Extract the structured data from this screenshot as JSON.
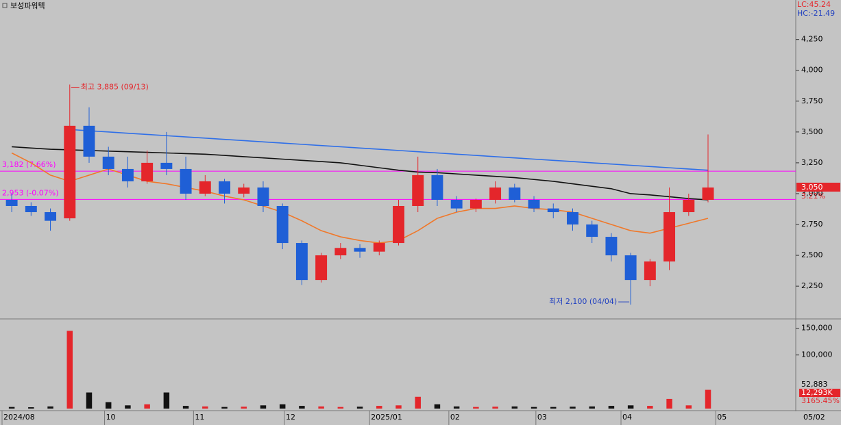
{
  "chart_data": [
    {
      "type": "candlestick",
      "title": "보성파워텍",
      "open": [
        2950,
        2900,
        2850,
        2800,
        3550,
        3300,
        3200,
        3100,
        3250,
        3200,
        3000,
        3100,
        3000,
        3050,
        2900,
        2600,
        2300,
        2500,
        2560,
        2530,
        2600,
        2900,
        3150,
        2950,
        2880,
        2950,
        3050,
        2950,
        2880,
        2850,
        2750,
        2650,
        2500,
        2300,
        2450,
        2850,
        2950
      ],
      "high": [
        3000,
        2930,
        2880,
        3885,
        3700,
        3380,
        3300,
        3350,
        3500,
        3300,
        3150,
        3120,
        3080,
        3100,
        2920,
        2620,
        2520,
        2600,
        2590,
        2620,
        2950,
        3300,
        3200,
        2980,
        2960,
        3100,
        3080,
        2980,
        2920,
        2880,
        2780,
        2680,
        2520,
        2470,
        3050,
        3000,
        3480
      ],
      "low": [
        2850,
        2820,
        2700,
        2780,
        3250,
        3150,
        3050,
        3080,
        3150,
        2950,
        2980,
        2920,
        2970,
        2850,
        2550,
        2260,
        2280,
        2470,
        2480,
        2500,
        2580,
        2850,
        2900,
        2850,
        2850,
        2920,
        2930,
        2850,
        2800,
        2700,
        2600,
        2450,
        2100,
        2250,
        2380,
        2820,
        2930
      ],
      "close": [
        2900,
        2850,
        2780,
        3550,
        3300,
        3200,
        3100,
        3250,
        3200,
        3000,
        3100,
        3000,
        3050,
        2900,
        2600,
        2300,
        2500,
        2560,
        2530,
        2600,
        2900,
        3150,
        2950,
        2880,
        2950,
        3050,
        2950,
        2880,
        2850,
        2750,
        2650,
        2500,
        2300,
        2450,
        2850,
        2950,
        3050
      ],
      "up_color": "#e4262b",
      "down_color": "#1f5fd6",
      "lines": [
        {
          "color": "#2f6fe8",
          "values": [
            null,
            null,
            null,
            3520,
            3510,
            3500,
            3490,
            3480,
            3470,
            3460,
            3450,
            3440,
            3430,
            3420,
            3410,
            3400,
            3390,
            3380,
            3370,
            3360,
            3350,
            3340,
            3330,
            3320,
            3310,
            3300,
            3290,
            3280,
            3270,
            3260,
            3250,
            3240,
            3230,
            3220,
            3210,
            3200,
            3190
          ]
        },
        {
          "color": "#111111",
          "values": [
            3380,
            3370,
            3360,
            3355,
            3350,
            3345,
            3340,
            3335,
            3330,
            3325,
            3320,
            3310,
            3300,
            3290,
            3280,
            3270,
            3260,
            3250,
            3230,
            3210,
            3190,
            3175,
            3170,
            3160,
            3150,
            3140,
            3130,
            3115,
            3100,
            3080,
            3060,
            3040,
            3000,
            2990,
            2975,
            2960,
            2950
          ]
        },
        {
          "color": "#f0782a",
          "values": [
            3330,
            3250,
            3150,
            3100,
            3150,
            3200,
            3150,
            3100,
            3080,
            3050,
            3020,
            2980,
            2950,
            2900,
            2850,
            2780,
            2700,
            2650,
            2620,
            2600,
            2620,
            2700,
            2800,
            2850,
            2880,
            2880,
            2900,
            2880,
            2870,
            2850,
            2800,
            2750,
            2700,
            2680,
            2720,
            2760,
            2800
          ]
        }
      ],
      "ref_color": "#ff00ff",
      "ref_lines": [
        {
          "value": 3182,
          "label": "3,182 (7.66%)"
        },
        {
          "value": 2953,
          "label": "2,953 (-0.07%)"
        }
      ],
      "high_note": "최고 3,885 (09/13)",
      "low_note": "최저 2,100 (04/04)",
      "lc_label": "LC:45.24",
      "hc_label": "HC:-21.49",
      "last_label": "3,050",
      "change_label": "3.21%",
      "xlim": [
        0,
        41
      ],
      "ylim": [
        1990,
        4570
      ],
      "yticks": [
        {
          "value": 2250,
          "label": "2,250"
        },
        {
          "value": 2500,
          "label": "2,500"
        },
        {
          "value": 2750,
          "label": "2,750"
        },
        {
          "value": 3000,
          "label": "3,000"
        },
        {
          "value": 3250,
          "label": "3,250"
        },
        {
          "value": 3500,
          "label": "3,500"
        },
        {
          "value": 3750,
          "label": "3,750"
        },
        {
          "value": 4000,
          "label": "4,000"
        },
        {
          "value": 4250,
          "label": "4,250"
        }
      ]
    },
    {
      "type": "bar",
      "values": [
        3000,
        2500,
        4000,
        145000,
        30000,
        12000,
        6000,
        8000,
        30000,
        5000,
        4000,
        3000,
        3500,
        6000,
        8000,
        5000,
        4000,
        3000,
        3500,
        5000,
        6000,
        22000,
        8000,
        4000,
        3000,
        3500,
        4000,
        3000,
        3000,
        3500,
        4000,
        5000,
        6000,
        5000,
        18000,
        6000,
        35000
      ],
      "colors": [
        "#e4262b",
        "#111111"
      ],
      "ylim": [
        0,
        166000
      ],
      "xlim": [
        0,
        41
      ],
      "yticks": [
        {
          "value": 100000,
          "label": "100,000"
        },
        {
          "value": 150000,
          "label": "150,000"
        }
      ],
      "xticks": [
        {
          "value": 0,
          "label": "2024/08"
        },
        {
          "value": 5.3,
          "label": "10"
        },
        {
          "value": 9.9,
          "label": "11"
        },
        {
          "value": 14.6,
          "label": "12"
        },
        {
          "value": 19,
          "label": "2025/01"
        },
        {
          "value": 23.1,
          "label": "02"
        },
        {
          "value": 27.6,
          "label": "03"
        },
        {
          "value": 32,
          "label": "04"
        },
        {
          "value": 36.9,
          "label": "05"
        }
      ],
      "date_label": "05/02",
      "right_labels": [
        "52,883",
        "12,293K",
        "3165.45%"
      ]
    }
  ]
}
